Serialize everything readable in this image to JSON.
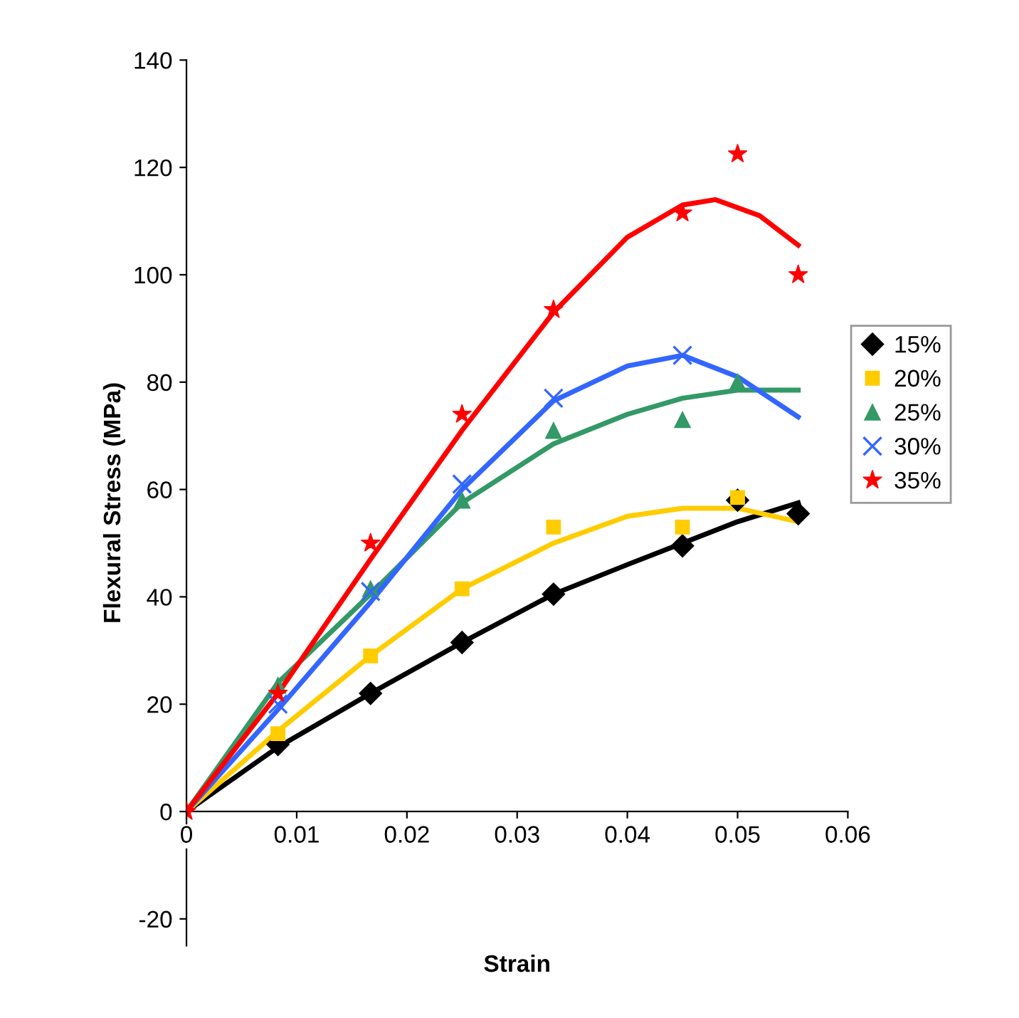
{
  "chart_data": {
    "type": "scatter",
    "xlabel": "Strain",
    "ylabel": "Flexural Stress (MPa)",
    "x": [
      0,
      0.0083,
      0.0167,
      0.025,
      0.0333,
      0.045,
      0.05,
      0.0555
    ],
    "series": [
      {
        "name": "15%",
        "color": "#000000",
        "marker": "diamond",
        "values": [
          null,
          12.5,
          22,
          31.5,
          40.5,
          49.5,
          58,
          55.5
        ]
      },
      {
        "name": "20%",
        "color": "#ffcc00",
        "marker": "square",
        "values": [
          null,
          14.5,
          29,
          41.5,
          53,
          53,
          58.5,
          null
        ]
      },
      {
        "name": "25%",
        "color": "#339966",
        "marker": "triangle",
        "values": [
          null,
          23.5,
          41.5,
          58,
          71,
          73,
          80,
          null
        ]
      },
      {
        "name": "30%",
        "color": "#3366ff",
        "marker": "cross",
        "values": [
          null,
          20,
          41,
          61,
          77,
          85,
          null,
          null
        ]
      },
      {
        "name": "35%",
        "color": "#ff0000",
        "marker": "star",
        "values": [
          0,
          22,
          50,
          74,
          93.5,
          111.5,
          122.5,
          100
        ]
      },
      {
        "type": "line",
        "color": "#000000",
        "x": [
          0,
          0.0083,
          0.0167,
          0.025,
          0.0333,
          0.04,
          0.045,
          0.05,
          0.0555
        ],
        "values": [
          0,
          12,
          22,
          31.5,
          40.5,
          46,
          50,
          54,
          57.5
        ]
      },
      {
        "type": "line",
        "color": "#ffcc00",
        "x": [
          0,
          0.0083,
          0.0167,
          0.025,
          0.0333,
          0.04,
          0.045,
          0.05,
          0.0555
        ],
        "values": [
          0,
          15,
          29,
          41.5,
          50,
          55,
          56.5,
          56.5,
          54
        ]
      },
      {
        "type": "line",
        "color": "#339966",
        "x": [
          0,
          0.0083,
          0.0167,
          0.025,
          0.0333,
          0.04,
          0.045,
          0.05,
          0.0555
        ],
        "values": [
          0,
          24,
          40.5,
          57.5,
          68.5,
          74,
          77,
          78.5,
          78.5
        ]
      },
      {
        "type": "line",
        "color": "#3366ff",
        "x": [
          0,
          0.0083,
          0.0167,
          0.025,
          0.0333,
          0.04,
          0.045,
          0.05,
          0.0555
        ],
        "values": [
          0,
          19,
          39,
          60,
          76.5,
          83,
          85,
          81,
          73.5
        ]
      },
      {
        "type": "line",
        "color": "#ff0000",
        "x": [
          0,
          0.0083,
          0.0167,
          0.025,
          0.0333,
          0.04,
          0.045,
          0.048,
          0.052,
          0.0555
        ],
        "values": [
          0,
          22,
          47,
          71,
          93,
          107,
          113,
          114,
          111,
          105.5
        ]
      }
    ],
    "xlim": [
      0,
      0.06
    ],
    "xticks": [
      0,
      0.01,
      0.02,
      0.03,
      0.04,
      0.05,
      0.06
    ],
    "ylim": [
      -25,
      140
    ],
    "yticks": [
      -20,
      0,
      20,
      40,
      60,
      80,
      100,
      120,
      140
    ],
    "legend": "right",
    "grid": false
  }
}
